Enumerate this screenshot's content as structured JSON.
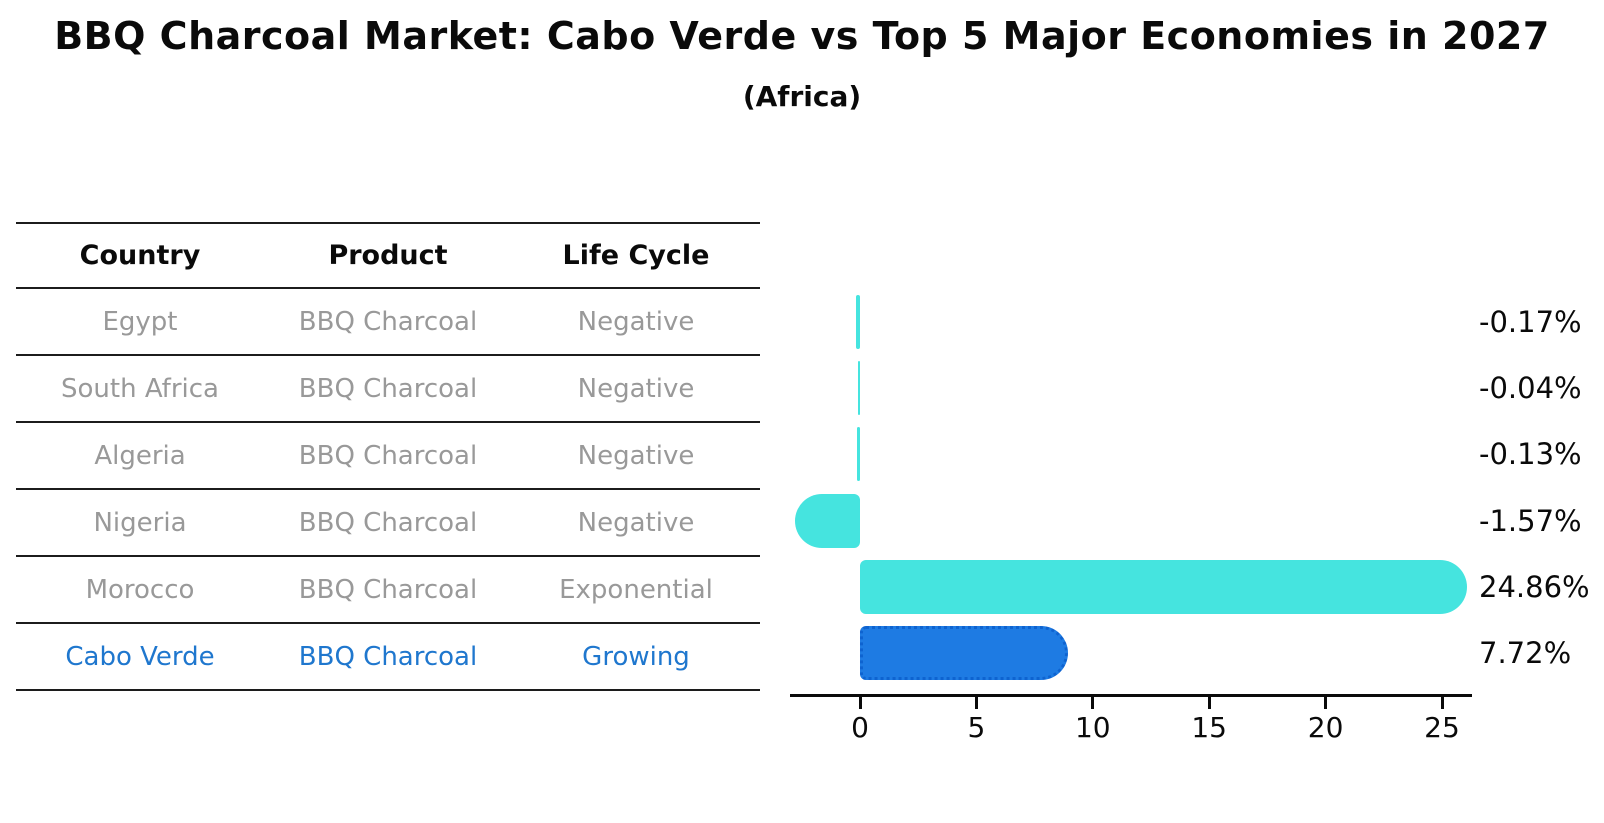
{
  "title": "BBQ Charcoal Market: Cabo Verde vs Top 5 Major Economies in 2027",
  "subtitle": "(Africa)",
  "table": {
    "headers": [
      "Country",
      "Product",
      "Life Cycle"
    ],
    "rows": [
      {
        "country": "Egypt",
        "product": "BBQ Charcoal",
        "life_cycle": "Negative",
        "highlight": false
      },
      {
        "country": "South Africa",
        "product": "BBQ Charcoal",
        "life_cycle": "Negative",
        "highlight": false
      },
      {
        "country": "Algeria",
        "product": "BBQ Charcoal",
        "life_cycle": "Negative",
        "highlight": false
      },
      {
        "country": "Nigeria",
        "product": "BBQ Charcoal",
        "life_cycle": "Negative",
        "highlight": false
      },
      {
        "country": "Morocco",
        "product": "BBQ Charcoal",
        "life_cycle": "Exponential",
        "highlight": false
      },
      {
        "country": "Cabo Verde",
        "product": "BBQ Charcoal",
        "life_cycle": "Growing",
        "highlight": true
      }
    ]
  },
  "chart_data": {
    "type": "bar",
    "orientation": "horizontal",
    "title": "BBQ Charcoal Market: Cabo Verde vs Top 5 Major Economies in 2027 (Africa)",
    "categories": [
      "Egypt",
      "South Africa",
      "Algeria",
      "Nigeria",
      "Morocco",
      "Cabo Verde"
    ],
    "values": [
      -0.17,
      -0.04,
      -0.13,
      -1.57,
      24.86,
      7.72
    ],
    "value_labels": [
      "-0.17%",
      "-0.04%",
      "-0.13%",
      "-1.57%",
      "24.86%",
      "7.72%"
    ],
    "x_ticks": [
      0,
      5,
      10,
      15,
      20,
      25
    ],
    "xlim": [
      -3,
      26.5
    ],
    "xlabel": "",
    "ylabel": "",
    "grid": false,
    "legend": false,
    "highlight_index": 5,
    "colors": {
      "bar": "#45E4DF",
      "highlight_bar": "#1E7BE3",
      "highlight_border": "#0E63D0",
      "highlight_text": "#1F77CE",
      "table_text": "#999999",
      "text": "#0a0a0a"
    }
  }
}
